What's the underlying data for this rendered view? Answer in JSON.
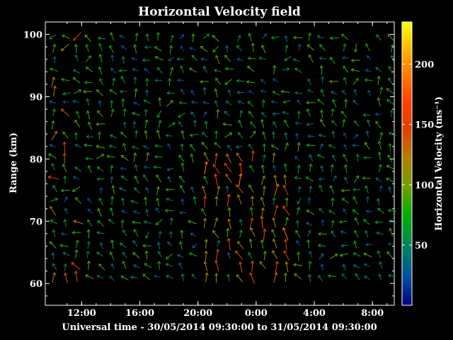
{
  "chart_data": {
    "type": "quiver",
    "title": "Horizontal Velocity field",
    "xlabel": "Universal time - 30/05/2014 09:30:00 to 31/05/2014 09:30:00",
    "ylabel": "Range (km)",
    "x_ticks": [
      "12:00",
      "16:00",
      "20:00",
      "0:00",
      "4:00",
      "8:00"
    ],
    "x_tick_hours": [
      2.5,
      6.5,
      10.5,
      14.5,
      18.5,
      22.5
    ],
    "x_range_hours": [
      0,
      24
    ],
    "y_ticks": [
      60,
      70,
      80,
      90,
      100
    ],
    "ylim": [
      56.5,
      102
    ],
    "grid": false,
    "colorbar": {
      "label": "Horizontal Velocity (ms⁻¹)",
      "range": [
        0,
        235
      ],
      "ticks": [
        50,
        100,
        150,
        200
      ],
      "colors": [
        "#000080",
        "#0050a0",
        "#008060",
        "#00b000",
        "#70a000",
        "#b08000",
        "#e04000",
        "#ff4000",
        "#ff9000",
        "#ffff00"
      ]
    },
    "grid_x_hours_start": 0.6,
    "grid_x_hours_step": 0.8,
    "grid_x_count": 30,
    "grid_y_km_start": 61,
    "grid_y_km_step": 1.75,
    "grid_y_count": 23
  }
}
